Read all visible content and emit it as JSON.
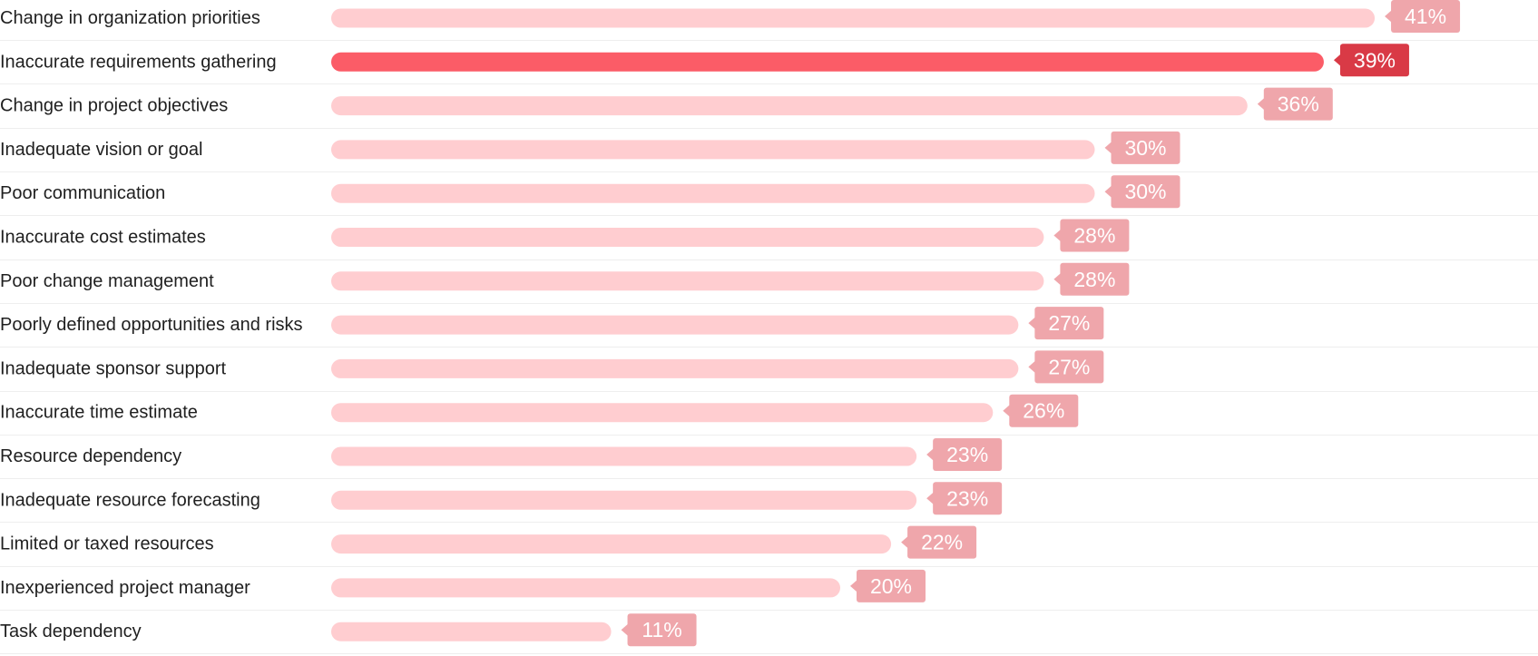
{
  "chart_data": {
    "type": "bar",
    "orientation": "horizontal",
    "categories": [
      "Change in organization priorities",
      "Inaccurate requirements gathering",
      "Change in project objectives",
      "Inadequate vision or goal",
      "Poor communication",
      "Inaccurate cost estimates",
      "Poor change management",
      "Poorly defined opportunities and risks",
      "Inadequate sponsor support",
      "Inaccurate time estimate",
      "Resource dependency",
      "Inadequate resource forecasting",
      "Limited or taxed resources",
      "Inexperienced project manager",
      "Task dependency"
    ],
    "values": [
      41,
      39,
      36,
      30,
      30,
      28,
      28,
      27,
      27,
      26,
      23,
      23,
      22,
      20,
      11
    ],
    "data_labels": [
      "41%",
      "39%",
      "36%",
      "30%",
      "30%",
      "28%",
      "28%",
      "27%",
      "27%",
      "26%",
      "23%",
      "23%",
      "22%",
      "20%",
      "11%"
    ],
    "highlighted_category": "Inaccurate requirements gathering",
    "unit": "%",
    "title": "",
    "xlabel": "",
    "ylabel": "",
    "grid": false,
    "legend": "none"
  },
  "colors": {
    "bar": "#ffcdd0",
    "bar_highlight": "#fb5c67",
    "badge": "#efa6ab",
    "badge_highlight": "#d93a46",
    "badge_text": "#ffffff",
    "divider": "#eeeeee",
    "label_text": "#1f1f1f"
  }
}
